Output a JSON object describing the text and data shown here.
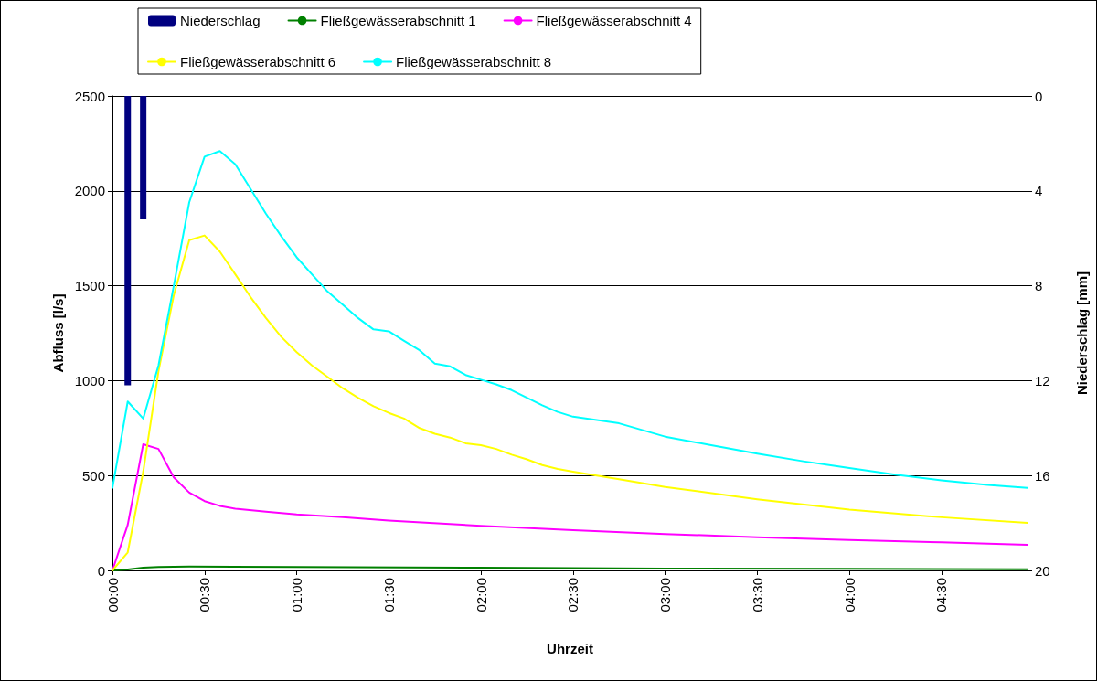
{
  "chart_data": {
    "type": "line",
    "xlabel": "Uhrzeit",
    "ylabel": "Abfluss [l/s]",
    "y2label": "Niederschlag [mm]",
    "xlim": [
      0,
      4.967
    ],
    "xticks": [
      {
        "value": 0,
        "label": "00:00"
      },
      {
        "value": 0.5,
        "label": "00:30"
      },
      {
        "value": 1,
        "label": "01:00"
      },
      {
        "value": 1.5,
        "label": "01:30"
      },
      {
        "value": 2,
        "label": "02:00"
      },
      {
        "value": 2.5,
        "label": "02:30"
      },
      {
        "value": 3,
        "label": "03:00"
      },
      {
        "value": 3.5,
        "label": "03:30"
      },
      {
        "value": 4,
        "label": "04:00"
      },
      {
        "value": 4.5,
        "label": "04:30"
      }
    ],
    "ylim": [
      0,
      2500
    ],
    "yticks": [
      0,
      500,
      1000,
      1500,
      2000,
      2500
    ],
    "y2lim": [
      20,
      0
    ],
    "y2ticks": [
      0,
      4,
      8,
      12,
      16,
      20
    ],
    "grid": "y",
    "legend": "top",
    "marker": "none",
    "line_style": "solid",
    "series": [
      {
        "name": "Niederschlag",
        "type": "bar",
        "axis": "y2",
        "color": "#000080",
        "x": [
          0.083,
          0.167
        ],
        "values": [
          12.2,
          5.2
        ]
      },
      {
        "name": "Fließgewässerabschnitt 1",
        "color": "#008000",
        "x": [
          0,
          0.083,
          0.167,
          0.25,
          0.417,
          1,
          2,
          3,
          4,
          4.967
        ],
        "values": [
          0,
          5,
          15,
          18,
          20,
          18,
          14,
          10,
          8,
          6
        ]
      },
      {
        "name": "Fließgewässerabschnitt 4",
        "color": "#ff00ff",
        "x": [
          0,
          0.083,
          0.167,
          0.25,
          0.333,
          0.417,
          0.5,
          0.583,
          0.667,
          0.833,
          1,
          1.25,
          1.5,
          2,
          2.5,
          3,
          3.5,
          4,
          4.5,
          4.967
        ],
        "values": [
          0,
          240,
          665,
          640,
          490,
          410,
          365,
          340,
          325,
          310,
          295,
          280,
          262,
          235,
          212,
          192,
          175,
          160,
          148,
          135
        ]
      },
      {
        "name": "Fließgewässerabschnitt 6",
        "color": "#ffff00",
        "x": [
          0,
          0.083,
          0.167,
          0.25,
          0.333,
          0.417,
          0.5,
          0.583,
          0.667,
          0.75,
          0.833,
          0.917,
          1,
          1.083,
          1.167,
          1.25,
          1.333,
          1.417,
          1.5,
          1.583,
          1.667,
          1.75,
          1.833,
          1.917,
          2,
          2.083,
          2.167,
          2.25,
          2.333,
          2.417,
          2.5,
          2.75,
          3,
          3.5,
          4,
          4.5,
          4.967
        ],
        "values": [
          0,
          95,
          520,
          1050,
          1450,
          1740,
          1765,
          1680,
          1560,
          1440,
          1330,
          1230,
          1150,
          1080,
          1020,
          960,
          910,
          865,
          830,
          800,
          750,
          720,
          700,
          670,
          660,
          640,
          610,
          585,
          555,
          535,
          520,
          480,
          440,
          375,
          320,
          280,
          250
        ]
      },
      {
        "name": "Fließgewässerabschnitt 8",
        "color": "#00ffff",
        "x": [
          0,
          0.083,
          0.167,
          0.25,
          0.333,
          0.417,
          0.5,
          0.583,
          0.667,
          0.75,
          0.833,
          0.917,
          1,
          1.083,
          1.167,
          1.25,
          1.333,
          1.417,
          1.5,
          1.583,
          1.667,
          1.75,
          1.833,
          1.917,
          2,
          2.083,
          2.167,
          2.25,
          2.333,
          2.417,
          2.5,
          2.75,
          3,
          3.25,
          3.5,
          3.75,
          4,
          4.25,
          4.5,
          4.75,
          4.967
        ],
        "values": [
          435,
          890,
          800,
          1080,
          1500,
          1940,
          2180,
          2210,
          2140,
          2010,
          1880,
          1760,
          1650,
          1560,
          1470,
          1400,
          1330,
          1270,
          1260,
          1210,
          1160,
          1090,
          1075,
          1030,
          1005,
          980,
          950,
          910,
          870,
          835,
          810,
          775,
          705,
          660,
          615,
          575,
          540,
          505,
          475,
          450,
          435
        ]
      }
    ]
  }
}
